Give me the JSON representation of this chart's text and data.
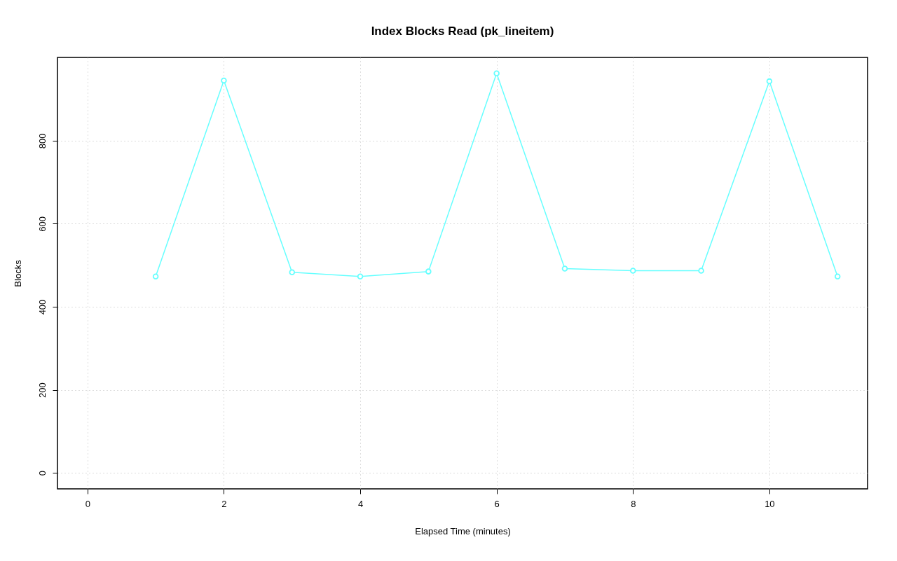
{
  "chart_data": {
    "type": "line",
    "title": "Index Blocks Read (pk_lineitem)",
    "xlabel": "Elapsed Time (minutes)",
    "ylabel": "Blocks",
    "x": [
      1,
      2,
      3,
      4,
      5,
      6,
      7,
      8,
      9,
      10,
      11
    ],
    "series": [
      {
        "color": "#66ffff",
        "values": [
          473,
          945,
          483,
          473,
          485,
          962,
          492,
          487,
          487,
          943,
          473
        ]
      }
    ],
    "xlim": [
      -0.44,
      11.44
    ],
    "ylim": [
      -38.5,
      1000.5
    ],
    "xticks": [
      0,
      2,
      4,
      6,
      8,
      10
    ],
    "yticks": [
      0,
      200,
      400,
      600,
      800
    ],
    "grid": true,
    "marker": "circle",
    "line_style": "solid"
  }
}
